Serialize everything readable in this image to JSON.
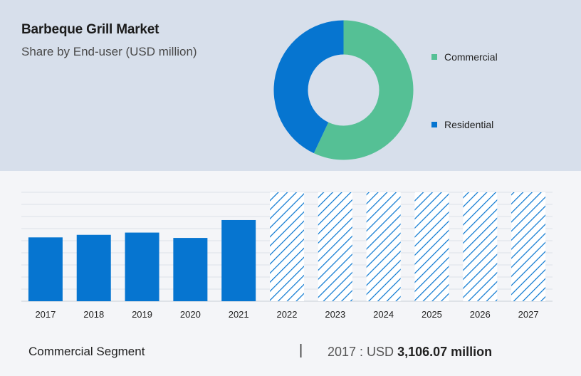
{
  "title": "Barbeque Grill Market",
  "subtitle": "Share by End-user (USD million)",
  "legend": [
    {
      "label": "Commercial",
      "color": "#55c095"
    },
    {
      "label": "Residential",
      "color": "#0675d0"
    }
  ],
  "footer": {
    "segment": "Commercial Segment",
    "divider": "|",
    "year": "2017",
    "separator": " : USD ",
    "amount": "3,106.07 million"
  },
  "chart_data": [
    {
      "type": "pie",
      "variant": "donut",
      "title": "Share by End-user (USD million)",
      "labels": [
        "Commercial",
        "Residential"
      ],
      "values": [
        57,
        43
      ],
      "colors": [
        "#55c095",
        "#0675d0"
      ]
    },
    {
      "type": "bar",
      "categories": [
        "2017",
        "2018",
        "2019",
        "2020",
        "2021",
        "2022",
        "2023",
        "2024",
        "2025",
        "2026",
        "2027"
      ],
      "values": [
        3106.07,
        3230,
        3340,
        3080,
        3950,
        null,
        null,
        null,
        null,
        null,
        null
      ],
      "forecast_categories": [
        "2022",
        "2023",
        "2024",
        "2025",
        "2026",
        "2027"
      ],
      "bar_color": "#0675d0",
      "forecast_pattern": "hatched",
      "ylim": [
        0,
        5300
      ],
      "grid": true,
      "xlabel": "",
      "ylabel": ""
    }
  ]
}
